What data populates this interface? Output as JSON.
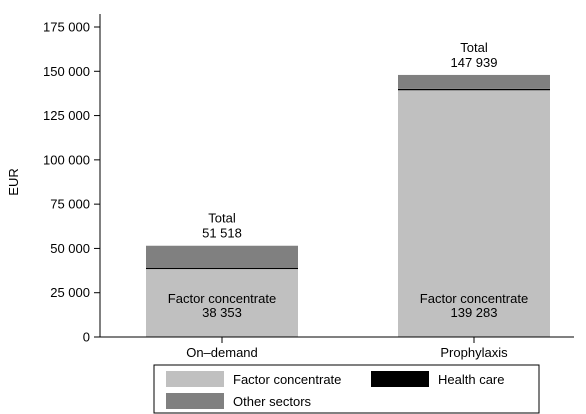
{
  "chart_data": {
    "type": "bar",
    "stacked": true,
    "title": "",
    "xlabel": "",
    "ylabel": "EUR",
    "ylim": [
      0,
      175000
    ],
    "yticks": [
      0,
      25000,
      50000,
      75000,
      100000,
      125000,
      150000,
      175000
    ],
    "ytick_labels": [
      "0",
      "25 000",
      "50 000",
      "75 000",
      "100 000",
      "125 000",
      "150 000",
      "175 000"
    ],
    "categories": [
      "On–demand",
      "Prophylaxis"
    ],
    "series": [
      {
        "name": "Factor concentrate",
        "values": [
          38353,
          139283
        ],
        "color": "#c0c0c0"
      },
      {
        "name": "Health care",
        "values": [
          600,
          800
        ],
        "color": "#000000"
      },
      {
        "name": "Other sectors",
        "values": [
          12565,
          7856
        ],
        "color": "#808080"
      }
    ],
    "totals": [
      51518,
      147939
    ],
    "total_label": "Total",
    "total_labels": [
      "51 518",
      "147 939"
    ],
    "segment_label": "Factor concentrate",
    "segment_value_labels": [
      "38 353",
      "139 283"
    ],
    "legend": {
      "position": "bottom",
      "entries": [
        "Factor concentrate",
        "Health care",
        "Other sectors"
      ]
    },
    "grid": false
  }
}
